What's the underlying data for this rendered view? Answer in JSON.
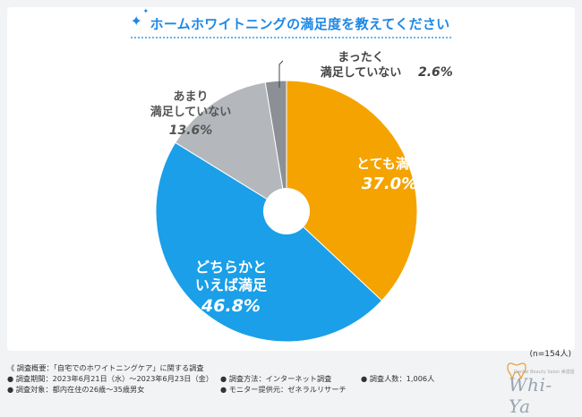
{
  "title": "ホームホワイトニングの満足度を教えてください",
  "sample_size": "(n=154人)",
  "chart_data": {
    "type": "pie",
    "title": "ホームホワイトニングの満足度を教えてください",
    "slices": [
      {
        "label": "とても満足",
        "value": 37.0,
        "display": "37.0%",
        "color": "#f5a300"
      },
      {
        "label": "どちらかといえば満足",
        "value": 46.8,
        "display": "46.8%",
        "color": "#1a9fe8"
      },
      {
        "label": "あまり満足していない",
        "value": 13.6,
        "display": "13.6%",
        "color": "#b4b8bc"
      },
      {
        "label": "まったく満足していない",
        "value": 2.6,
        "display": "2.6%",
        "color": "#8c9096"
      }
    ],
    "label_lines": {
      "とても満足": [
        "とても満足"
      ],
      "どちらかといえば満足": [
        "どちらかと",
        "いえば満足"
      ],
      "あまり満足していない": [
        "あまり",
        "満足していない"
      ],
      "まったく満足していない": [
        "まったく",
        "満足していない"
      ]
    }
  },
  "footer": {
    "overview": "《 調査概要：「自宅でのホワイトニングケア」に関する調査",
    "period": "● 調査期間：2023年6月21日（水）～2023年6月23日（金）",
    "method": "● 調査方法：インターネット調査",
    "count": "● 調査人数：1,006人",
    "target": "● 調査対象：都内在住の26歳～35歳男女",
    "provider": "● モニター提供元：ゼネラルリサーチ"
  },
  "logo": {
    "text": "Whi-Ya",
    "subtitle": "Dental Beauty Salon 美歯屋"
  }
}
